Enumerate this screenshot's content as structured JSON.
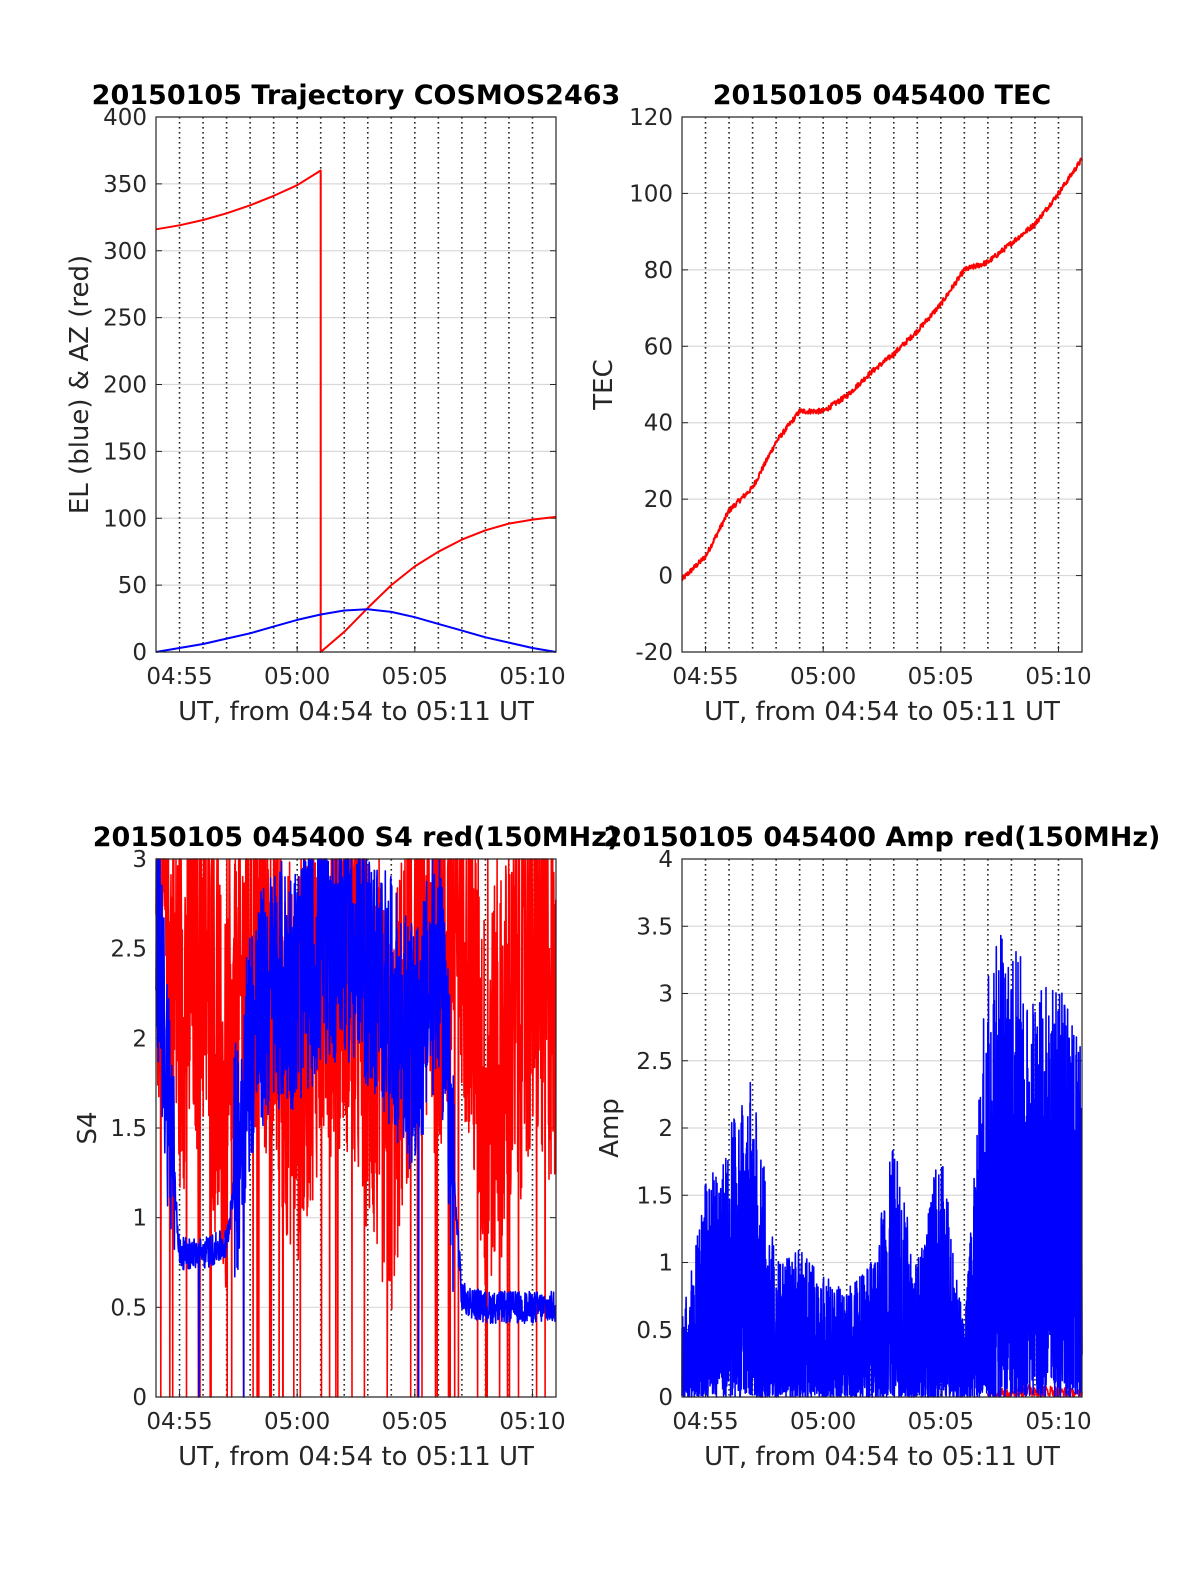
{
  "colors": {
    "red": "#ff0000",
    "blue": "#0000ff",
    "grid": "#d9d9d9",
    "vgrid": "#262626"
  },
  "chart_data": [
    {
      "type": "line",
      "title": "20150105 Trajectory COSMOS2463",
      "xlabel": "UT, from 04:54 to 05:11 UT",
      "ylabel": "EL (blue) & AZ (red)",
      "xlim": [
        "04:54",
        "05:11"
      ],
      "ylim": [
        0,
        400
      ],
      "xticks": [
        "04:55",
        "05:00",
        "05:05",
        "05:10"
      ],
      "yticks": [
        "0",
        "50",
        "100",
        "150",
        "200",
        "250",
        "300",
        "350",
        "400"
      ],
      "grid": true,
      "series": [
        {
          "color": "red",
          "x": [
            "04:54",
            "04:55",
            "04:56",
            "04:57",
            "04:58",
            "04:59",
            "05:00",
            "05:01",
            "05:01",
            "05:02",
            "05:03",
            "05:04",
            "05:05",
            "05:06",
            "05:07",
            "05:08",
            "05:09",
            "05:10",
            "05:11"
          ],
          "values": [
            316,
            319,
            323,
            328,
            334,
            341,
            349,
            360,
            0,
            15,
            33,
            50,
            64,
            75,
            84,
            91,
            96,
            99,
            101
          ]
        },
        {
          "color": "blue",
          "x": [
            "04:54",
            "04:55",
            "04:56",
            "04:57",
            "04:58",
            "04:59",
            "05:00",
            "05:01",
            "05:02",
            "05:03",
            "05:04",
            "05:05",
            "05:06",
            "05:07",
            "05:08",
            "05:09",
            "05:10",
            "05:11"
          ],
          "values": [
            0,
            3,
            6,
            10,
            14,
            19,
            24,
            28,
            31,
            32,
            30,
            26,
            21,
            16,
            11,
            7,
            3,
            0
          ]
        }
      ]
    },
    {
      "type": "line",
      "title": "20150105 045400 TEC",
      "xlabel": "UT, from 04:54 to 05:11 UT",
      "ylabel": "TEC",
      "xlim": [
        "04:54",
        "05:11"
      ],
      "ylim": [
        -20,
        120
      ],
      "xticks": [
        "04:55",
        "05:00",
        "05:05",
        "05:10"
      ],
      "yticks": [
        "-20",
        "0",
        "20",
        "40",
        "60",
        "80",
        "100",
        "120"
      ],
      "grid": true,
      "series": [
        {
          "color": "red",
          "x": [
            "04:54",
            "04:55",
            "04:56",
            "04:57",
            "04:58",
            "04:59",
            "05:00",
            "05:01",
            "05:02",
            "05:03",
            "05:04",
            "05:05",
            "05:06",
            "05:07",
            "05:08",
            "05:09",
            "05:10",
            "05:11"
          ],
          "values": [
            -1,
            5,
            17,
            23,
            35,
            43,
            43,
            47,
            53,
            58,
            64,
            71,
            80,
            82,
            87,
            92,
            100,
            109
          ]
        }
      ]
    },
    {
      "type": "line",
      "title": "20150105 045400 S4 red(150MHz)",
      "xlabel": "UT, from 04:54 to 05:11 UT",
      "ylabel": "S4",
      "xlim": [
        "04:54",
        "05:11"
      ],
      "ylim": [
        0,
        3
      ],
      "xticks": [
        "04:55",
        "05:00",
        "05:05",
        "05:10"
      ],
      "yticks": [
        "0",
        "0.5",
        "1",
        "1.5",
        "2",
        "2.5",
        "3"
      ],
      "grid": true,
      "series": [
        {
          "color": "red",
          "x": [
            "04:54",
            "04:55",
            "04:56",
            "04:57",
            "04:58",
            "04:59",
            "05:00",
            "05:01",
            "05:02",
            "05:03",
            "05:04",
            "05:05",
            "05:06",
            "05:07",
            "05:08",
            "05:09",
            "05:10",
            "05:11"
          ],
          "values": [
            2.8,
            2.2,
            2.5,
            1.5,
            2.6,
            2.2,
            1.8,
            2.4,
            2.5,
            2.0,
            1.5,
            2.6,
            2.4,
            2.8,
            1.6,
            2.0,
            2.4,
            2.2
          ]
        },
        {
          "color": "blue",
          "x": [
            "04:54",
            "04:55",
            "04:56",
            "04:57",
            "04:58",
            "04:59",
            "05:00",
            "05:01",
            "05:02",
            "05:03",
            "05:04",
            "05:05",
            "05:06",
            "05:07",
            "05:08",
            "05:09",
            "05:10",
            "05:11"
          ],
          "values": [
            2.7,
            0.8,
            0.8,
            0.85,
            2.0,
            2.3,
            2.3,
            2.5,
            2.6,
            2.4,
            2.2,
            1.9,
            2.5,
            0.55,
            0.5,
            0.5,
            0.5,
            0.5
          ]
        }
      ]
    },
    {
      "type": "line",
      "title": "20150105 045400 Amp red(150MHz)",
      "xlabel": "UT, from 04:54 to 05:11 UT",
      "ylabel": "Amp",
      "xlim": [
        "04:54",
        "05:11"
      ],
      "ylim": [
        0,
        4
      ],
      "xticks": [
        "04:55",
        "05:00",
        "05:05",
        "05:10"
      ],
      "yticks": [
        "0",
        "0.5",
        "1",
        "1.5",
        "2",
        "2.5",
        "3",
        "3.5",
        "4"
      ],
      "grid": true,
      "series": [
        {
          "color": "red",
          "x": [
            "05:07",
            "05:08",
            "05:09",
            "05:10",
            "05:11"
          ],
          "values": [
            0.05,
            0.08,
            0.1,
            0.08,
            0.05
          ]
        },
        {
          "color": "blue",
          "x": [
            "04:54",
            "04:55",
            "04:56",
            "04:57",
            "04:58",
            "04:59",
            "05:00",
            "05:01",
            "05:02",
            "05:03",
            "05:04",
            "05:05",
            "05:06",
            "05:07",
            "05:08",
            "05:09",
            "05:10",
            "05:11"
          ],
          "values": [
            0.6,
            1.6,
            2.0,
            2.4,
            1.0,
            1.1,
            0.9,
            0.8,
            1.0,
            1.9,
            1.0,
            1.9,
            0.5,
            3.4,
            3.5,
            3.0,
            3.1,
            2.6
          ]
        }
      ]
    }
  ]
}
